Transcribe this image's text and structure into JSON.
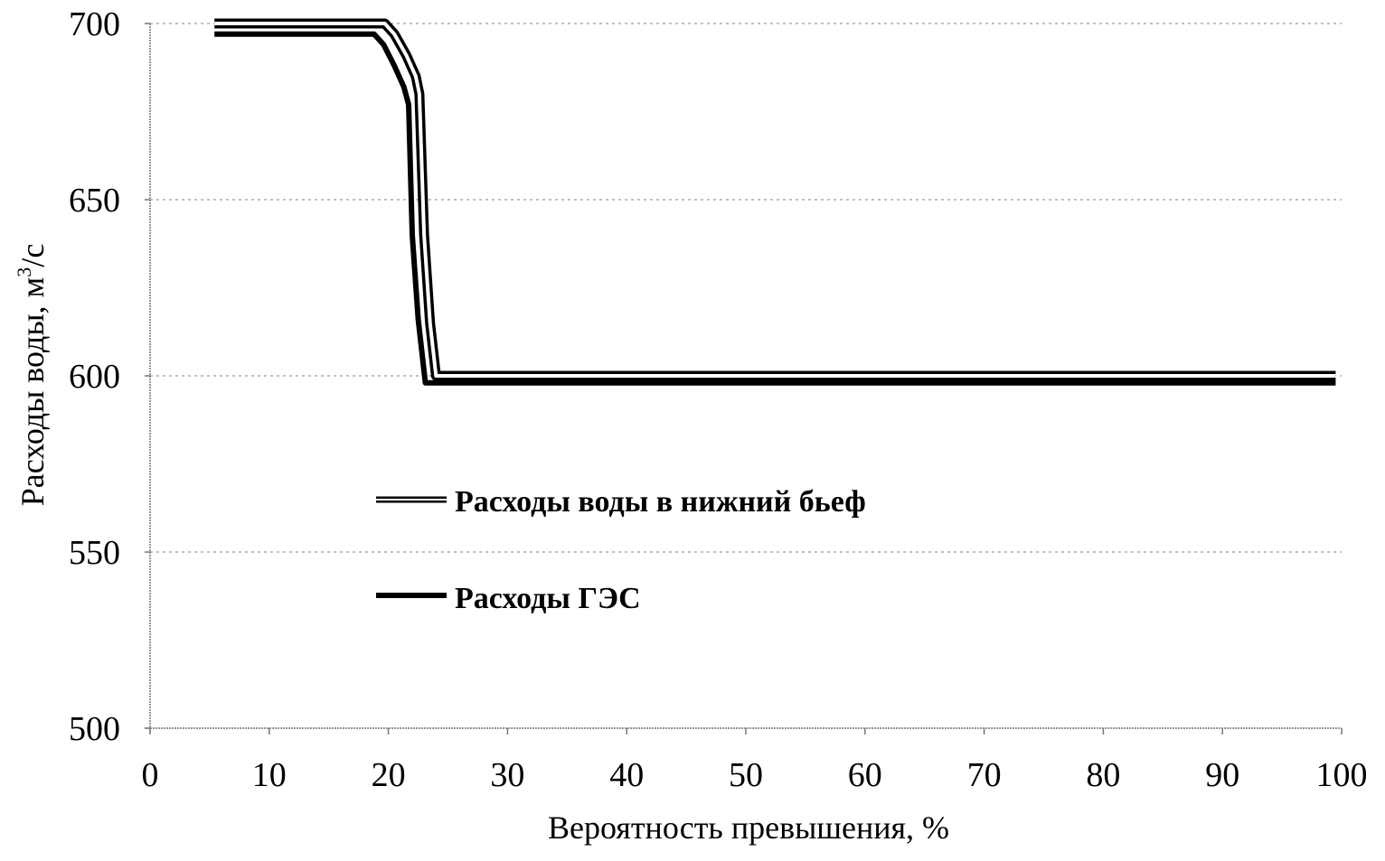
{
  "chart_data": {
    "type": "line",
    "title": "",
    "xlabel": "Вероятность превышения, %",
    "ylabel": "Расходы воды, м³/с",
    "ylabel_parts": {
      "main": "Расходы воды, м",
      "sup": "3",
      "tail": "/с"
    },
    "xlim": [
      0,
      100
    ],
    "ylim": [
      500,
      700
    ],
    "x_ticks": [
      0,
      10,
      20,
      30,
      40,
      50,
      60,
      70,
      80,
      90,
      100
    ],
    "y_ticks": [
      500,
      550,
      600,
      650,
      700
    ],
    "grid": true,
    "legend_position": "inside-center-left",
    "series": [
      {
        "name": "Расходы воды в нижний бьеф",
        "style": "hollow-double",
        "x": [
          5.4,
          10,
          15,
          19.7,
          20.5,
          21.5,
          22.3,
          22.6,
          23.0,
          23.5,
          24.0,
          30,
          40,
          50,
          60,
          70,
          80,
          90,
          99.5
        ],
        "values": [
          700,
          700,
          700,
          700,
          697,
          691,
          685,
          680,
          640,
          615,
          600,
          600,
          600,
          600,
          600,
          600,
          600,
          600,
          600
        ]
      },
      {
        "name": "Расходы ГЭС",
        "style": "solid-thick",
        "x": [
          5.4,
          10,
          15,
          18.8,
          19.6,
          20.5,
          21.3,
          21.7,
          22.0,
          22.5,
          23.1,
          30,
          40,
          50,
          60,
          70,
          80,
          90,
          99.5
        ],
        "values": [
          697,
          697,
          697,
          697,
          694,
          688,
          682,
          677,
          640,
          616,
          598,
          598,
          598,
          598,
          598,
          598,
          598,
          598,
          598
        ]
      }
    ]
  },
  "legend": {
    "items": [
      {
        "label": "Расходы воды в нижний бьеф"
      },
      {
        "label": "Расходы ГЭС"
      }
    ]
  },
  "colors": {
    "line": "#000000",
    "grid": "#9a9a9a",
    "background": "#ffffff"
  }
}
